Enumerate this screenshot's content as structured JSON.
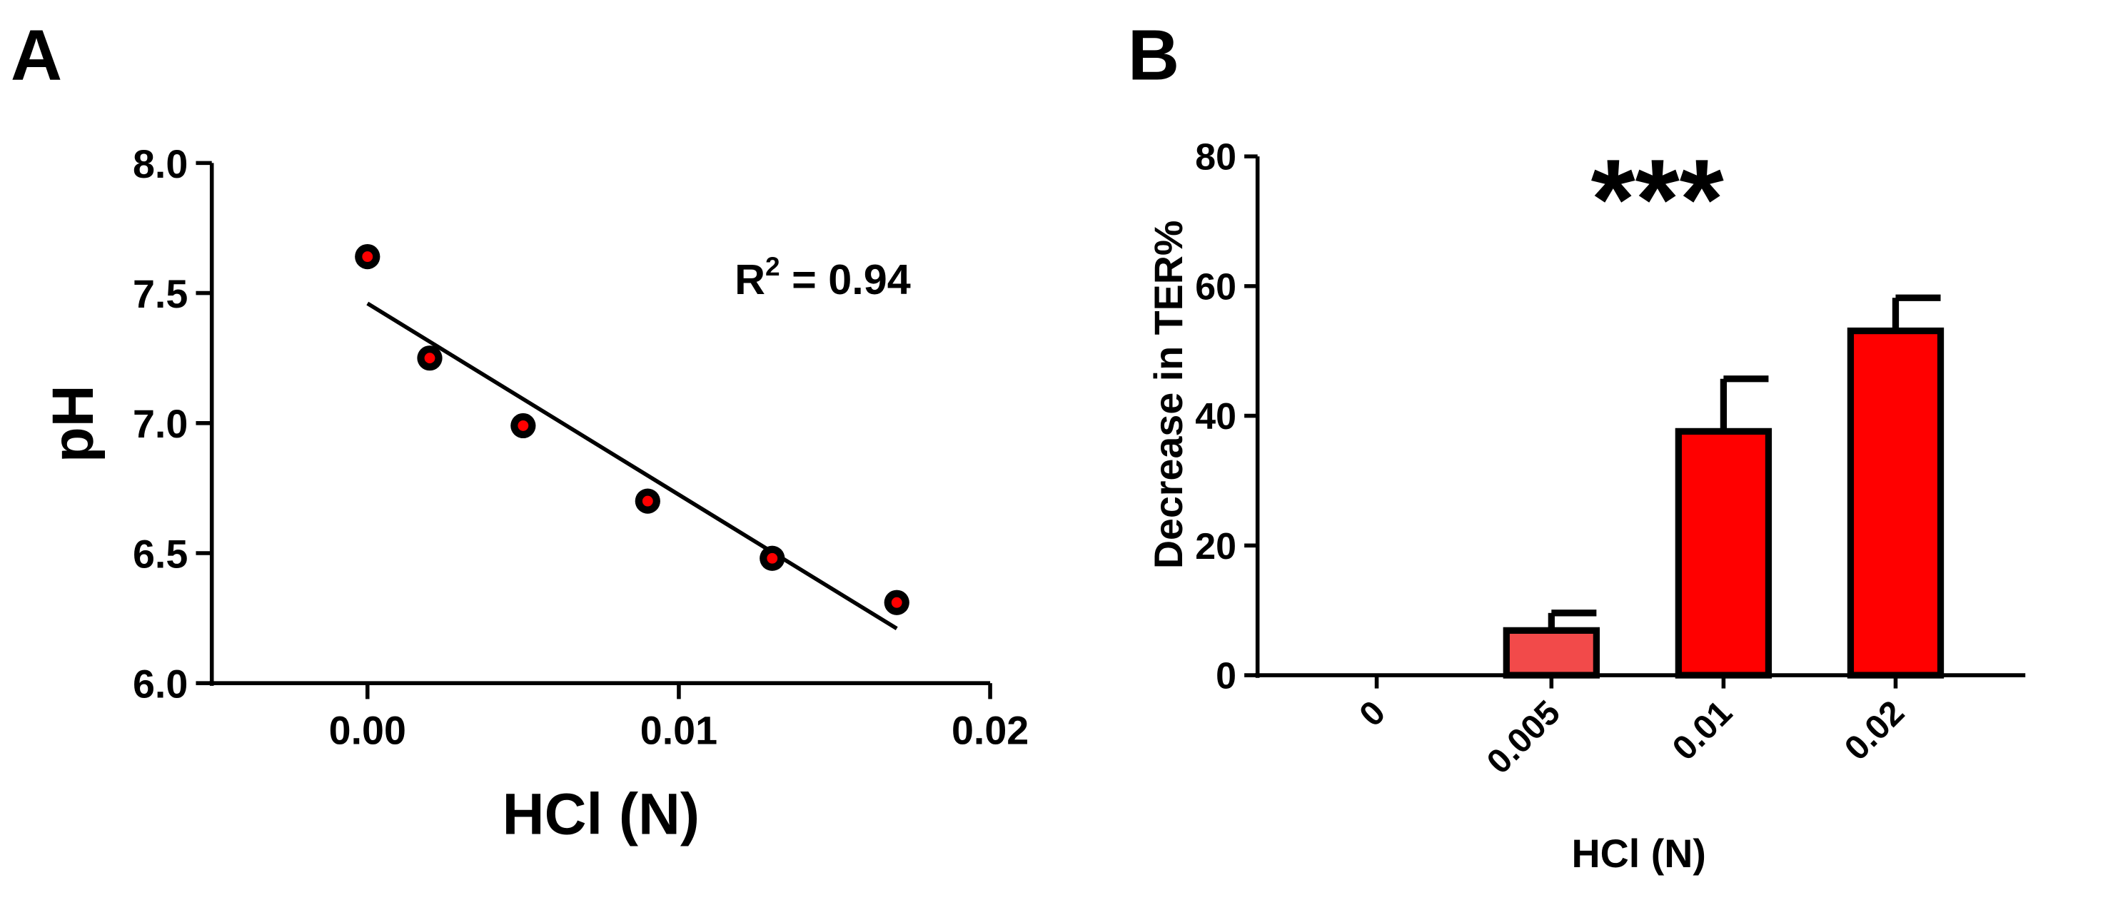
{
  "chart_data": [
    {
      "panel": "A",
      "type": "scatter",
      "xlabel": "HCl (N)",
      "ylabel": "pH",
      "xlim": [
        -0.005,
        0.02
      ],
      "ylim": [
        6.0,
        8.0
      ],
      "xticks": [
        "0.00",
        "0.01",
        "0.02"
      ],
      "xtick_values": [
        0,
        0.01,
        0.02
      ],
      "yticks": [
        "6.0",
        "6.5",
        "7.0",
        "7.5",
        "8.0"
      ],
      "ytick_values": [
        6.0,
        6.5,
        7.0,
        7.5,
        8.0
      ],
      "points": [
        {
          "x": 0.0,
          "y": 7.64
        },
        {
          "x": 0.002,
          "y": 7.25
        },
        {
          "x": 0.005,
          "y": 6.99
        },
        {
          "x": 0.009,
          "y": 6.7
        },
        {
          "x": 0.013,
          "y": 6.48
        },
        {
          "x": 0.017,
          "y": 6.31
        }
      ],
      "fit_line": {
        "x": [
          0.0,
          0.017
        ],
        "y": [
          7.46,
          6.21
        ]
      },
      "annotation": {
        "base": "R",
        "sup": "2",
        "rest": " = 0.94"
      },
      "grid": false,
      "colors": {
        "marker_fill": "#ff0000",
        "marker_edge": "#000000"
      }
    },
    {
      "panel": "B",
      "type": "bar",
      "xlabel": "HCl (N)",
      "ylabel": "Decrease in TER%",
      "ylim": [
        0,
        80
      ],
      "yticks": [
        "0",
        "20",
        "40",
        "60",
        "80"
      ],
      "ytick_values": [
        0,
        20,
        40,
        60,
        80
      ],
      "categories": [
        "0",
        "0.005",
        "0.01",
        "0.02"
      ],
      "values": [
        0,
        6.9,
        37.6,
        53.1
      ],
      "error_upper": [
        0,
        9.6,
        45.7,
        58.2
      ],
      "annotation": "***",
      "grid": false,
      "colors": {
        "bars": [
          "#ff0000",
          "#f24a4a",
          "#ff0000",
          "#ff0000"
        ],
        "edge": "#000000"
      }
    }
  ],
  "panel_labels": [
    "A",
    "B"
  ]
}
